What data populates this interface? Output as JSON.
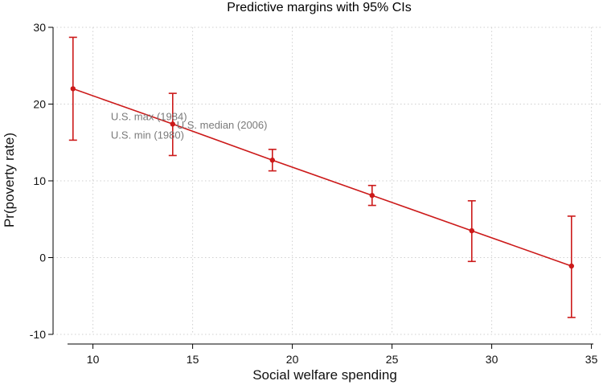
{
  "chart_data": {
    "type": "line",
    "title": "Predictive margins with 95% CIs",
    "xlabel": "Social welfare spending",
    "ylabel": "Pr(poverty rate)",
    "xlim": [
      8,
      35.5
    ],
    "ylim": [
      -10,
      30
    ],
    "x_ticks": [
      10,
      15,
      20,
      25,
      30,
      35
    ],
    "y_ticks": [
      -10,
      0,
      10,
      20,
      30
    ],
    "x_tick_labels": [
      "10",
      "15",
      "20",
      "25",
      "30",
      "35"
    ],
    "y_tick_labels": [
      "-10",
      "0",
      "10",
      "20",
      "30"
    ],
    "grid": true,
    "color": "#cc1a1a",
    "series": [
      {
        "name": "Predictive margins",
        "x": [
          9,
          14,
          19,
          24,
          29,
          34
        ],
        "y": [
          22.0,
          17.4,
          12.7,
          8.1,
          3.5,
          -1.1
        ],
        "ci_low": [
          15.3,
          13.3,
          11.3,
          6.8,
          -0.5,
          -7.8
        ],
        "ci_high": [
          28.7,
          21.4,
          14.1,
          9.4,
          7.4,
          5.4
        ]
      }
    ],
    "annotations": [
      {
        "text": "U.S. max (1984)",
        "x": 10.9,
        "y": 17.9
      },
      {
        "text": "U.S. median (2006)",
        "x": 14.2,
        "y": 16.8
      },
      {
        "text": "U.S. min (1980)",
        "x": 10.9,
        "y": 15.5
      }
    ]
  }
}
